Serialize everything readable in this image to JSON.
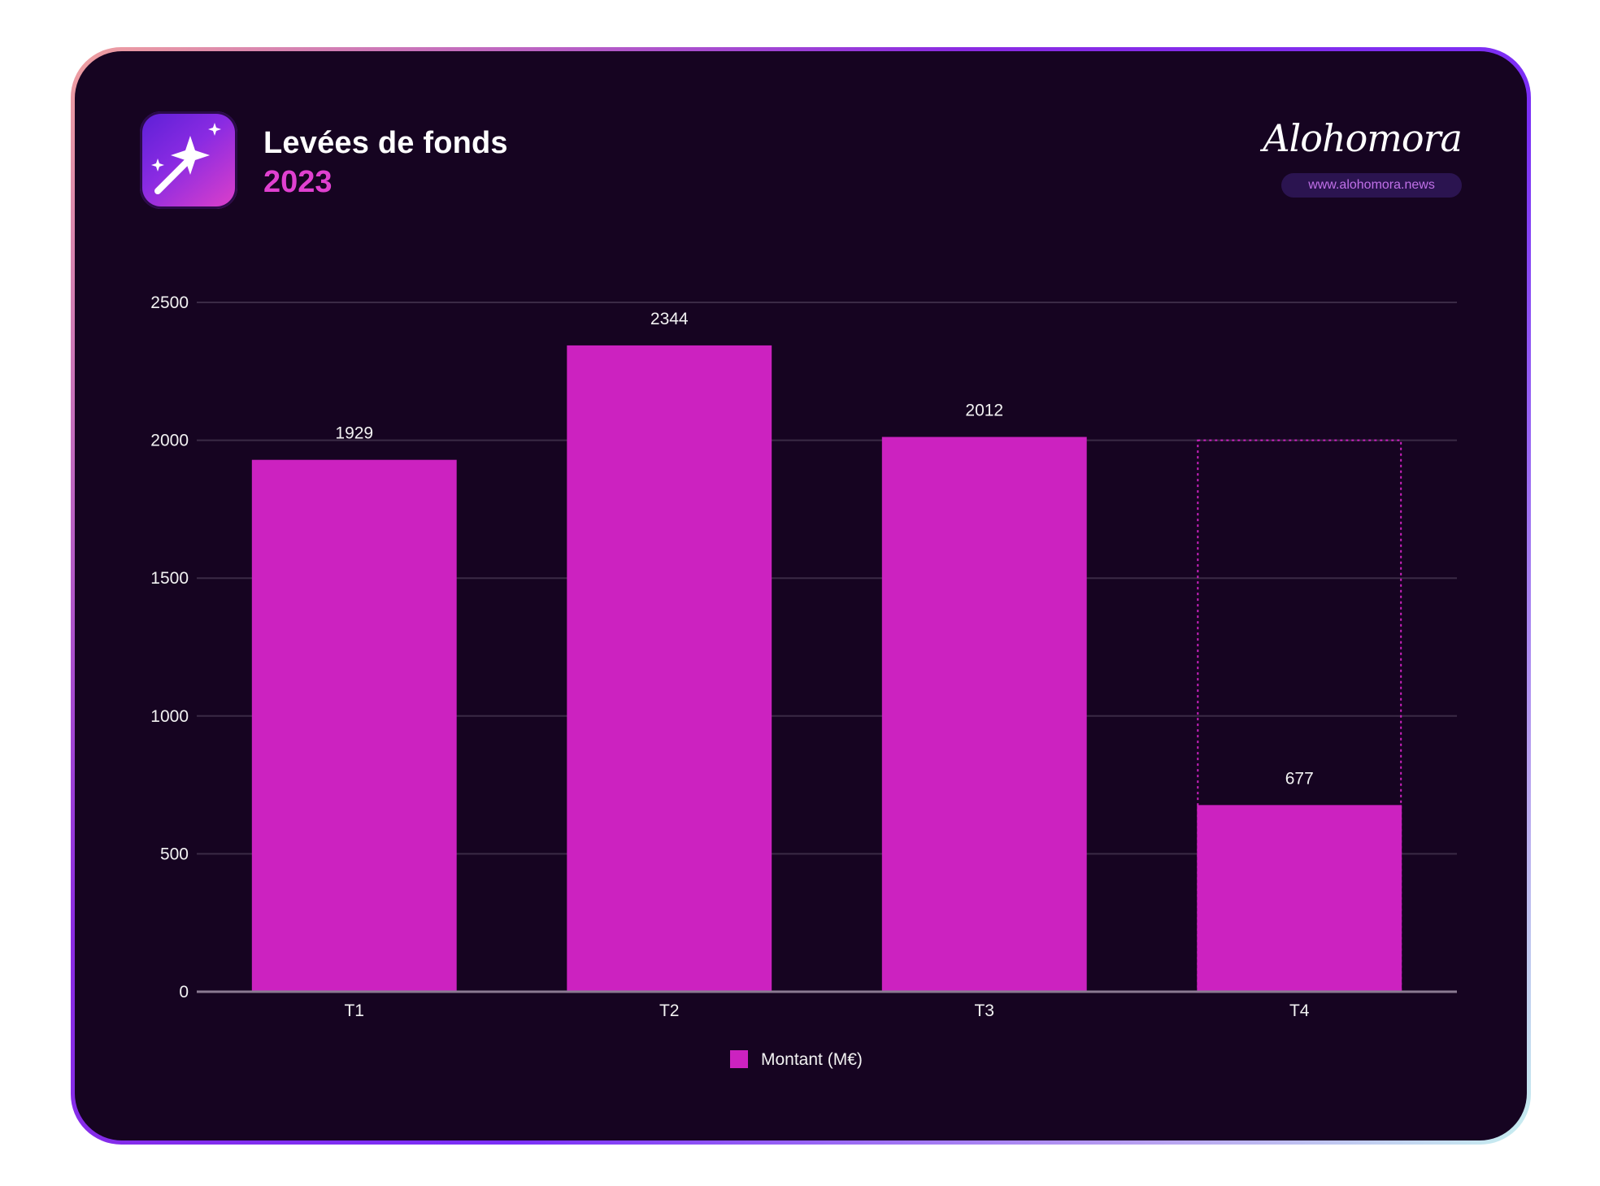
{
  "header": {
    "title": "Levées de fonds",
    "subtitle": "2023",
    "app_icon": "magic-wand-icon"
  },
  "brand": {
    "logo_text": "Alohomora",
    "url": "www.alohomora.news"
  },
  "colors": {
    "background": "#160421",
    "bar": "#cc22c0",
    "accent": "#e040d0",
    "grid": "#3a2a45"
  },
  "chart_data": {
    "type": "bar",
    "categories": [
      "T1",
      "T2",
      "T3",
      "T4"
    ],
    "series": [
      {
        "name": "Montant (M€)",
        "values": [
          1929,
          2344,
          2012,
          677
        ]
      }
    ],
    "projection": {
      "category": "T4",
      "value": 2000,
      "style": "dotted-outline"
    },
    "ylim": [
      0,
      2500
    ],
    "yticks": [
      "0",
      "500",
      "1000",
      "1500",
      "2000",
      "2500"
    ],
    "grid": true,
    "legend": "bottom-center"
  }
}
